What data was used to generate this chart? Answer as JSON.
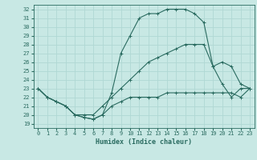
{
  "xlabel": "Humidex (Indice chaleur)",
  "bg_color": "#c8e8e4",
  "line_color": "#2a6b60",
  "grid_color": "#b0d8d4",
  "xlim": [
    -0.5,
    23.5
  ],
  "ylim": [
    18.5,
    32.5
  ],
  "xticks": [
    0,
    1,
    2,
    3,
    4,
    5,
    6,
    7,
    8,
    9,
    10,
    11,
    12,
    13,
    14,
    15,
    16,
    17,
    18,
    19,
    20,
    21,
    22,
    23
  ],
  "yticks": [
    19,
    20,
    21,
    22,
    23,
    24,
    25,
    26,
    27,
    28,
    29,
    30,
    31,
    32
  ],
  "line_min_x": [
    0,
    1,
    2,
    3,
    4,
    5,
    6,
    7,
    8,
    9,
    10,
    11,
    12,
    13,
    14,
    15,
    16,
    17,
    18,
    19,
    20,
    21,
    22,
    23
  ],
  "line_min_y": [
    23,
    22,
    21.5,
    21,
    20,
    19.7,
    19.5,
    20,
    21,
    21.5,
    22,
    22,
    22,
    22,
    22.5,
    22.5,
    22.5,
    22.5,
    22.5,
    22.5,
    22.5,
    22.5,
    22,
    23
  ],
  "line_max_x": [
    0,
    1,
    2,
    3,
    4,
    5,
    6,
    7,
    8,
    9,
    10,
    11,
    12,
    13,
    14,
    15,
    16,
    17,
    18,
    19,
    20,
    21,
    22,
    23
  ],
  "line_max_y": [
    23,
    22,
    21.5,
    21,
    20,
    19.7,
    19.5,
    20,
    22.5,
    27,
    29,
    31,
    31.5,
    31.5,
    32,
    32,
    32,
    31.5,
    30.5,
    25.5,
    23.5,
    22,
    23,
    23
  ],
  "line_avg_x": [
    0,
    1,
    2,
    3,
    4,
    5,
    6,
    7,
    8,
    9,
    10,
    11,
    12,
    13,
    14,
    15,
    16,
    17,
    18,
    19,
    20,
    21,
    22,
    23
  ],
  "line_avg_y": [
    23,
    22,
    21.5,
    21,
    20,
    20,
    20,
    21,
    22,
    23,
    24,
    25,
    26,
    26.5,
    27,
    27.5,
    28,
    28,
    28,
    25.5,
    26,
    25.5,
    23.5,
    23
  ]
}
